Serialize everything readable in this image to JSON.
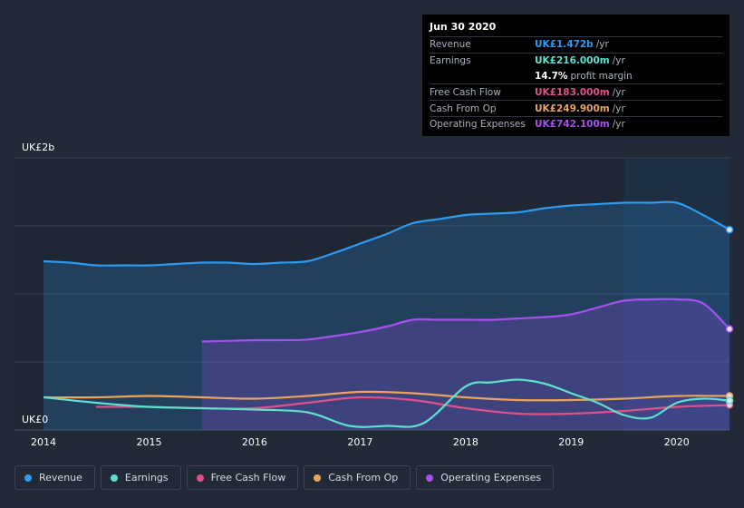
{
  "tooltip": {
    "date": "Jun 30 2020",
    "rows": [
      {
        "label": "Revenue",
        "value": "UK£1.472b",
        "unit": "/yr",
        "color": "#2d9bf0"
      },
      {
        "label": "Earnings",
        "value": "UK£216.000m",
        "unit": "/yr",
        "color": "#5ee0cf"
      },
      {
        "label": "",
        "value": "14.7%",
        "unit": "profit margin",
        "color": "#ffffff"
      },
      {
        "label": "Free Cash Flow",
        "value": "UK£183.000m",
        "unit": "/yr",
        "color": "#e0508a"
      },
      {
        "label": "Cash From Op",
        "value": "UK£249.900m",
        "unit": "/yr",
        "color": "#e9a55c"
      },
      {
        "label": "Operating Expenses",
        "value": "UK£742.100m",
        "unit": "/yr",
        "color": "#a84ff0"
      }
    ]
  },
  "legend": [
    {
      "label": "Revenue",
      "color": "#2d9bf0"
    },
    {
      "label": "Earnings",
      "color": "#5ee0cf"
    },
    {
      "label": "Free Cash Flow",
      "color": "#e0508a"
    },
    {
      "label": "Cash From Op",
      "color": "#e9a55c"
    },
    {
      "label": "Operating Expenses",
      "color": "#a84ff0"
    }
  ],
  "chart_data": {
    "type": "area",
    "ylabel_top": "UK£2b",
    "ylabel_bottom": "UK£0",
    "ylim": [
      0,
      2.0
    ],
    "xlim": [
      2014.0,
      2020.5
    ],
    "highlight_from": 2019.5,
    "x_ticks": [
      "2014",
      "2015",
      "2016",
      "2017",
      "2018",
      "2019",
      "2020"
    ],
    "series": [
      {
        "name": "Revenue",
        "color": "#2d9bf0",
        "fill": true,
        "points": [
          [
            2014.0,
            1.24
          ],
          [
            2014.25,
            1.23
          ],
          [
            2014.5,
            1.21
          ],
          [
            2014.75,
            1.21
          ],
          [
            2015.0,
            1.21
          ],
          [
            2015.25,
            1.22
          ],
          [
            2015.5,
            1.23
          ],
          [
            2015.75,
            1.23
          ],
          [
            2016.0,
            1.22
          ],
          [
            2016.25,
            1.23
          ],
          [
            2016.5,
            1.24
          ],
          [
            2016.75,
            1.3
          ],
          [
            2017.0,
            1.37
          ],
          [
            2017.25,
            1.44
          ],
          [
            2017.5,
            1.52
          ],
          [
            2017.75,
            1.55
          ],
          [
            2018.0,
            1.58
          ],
          [
            2018.25,
            1.59
          ],
          [
            2018.5,
            1.6
          ],
          [
            2018.75,
            1.63
          ],
          [
            2019.0,
            1.65
          ],
          [
            2019.25,
            1.66
          ],
          [
            2019.5,
            1.67
          ],
          [
            2019.75,
            1.67
          ],
          [
            2020.0,
            1.67
          ],
          [
            2020.25,
            1.58
          ],
          [
            2020.5,
            1.472
          ]
        ]
      },
      {
        "name": "Operating Expenses",
        "color": "#a84ff0",
        "fill": true,
        "points": [
          [
            2015.5,
            0.65
          ],
          [
            2015.75,
            0.655
          ],
          [
            2016.0,
            0.66
          ],
          [
            2016.25,
            0.66
          ],
          [
            2016.5,
            0.665
          ],
          [
            2016.75,
            0.69
          ],
          [
            2017.0,
            0.72
          ],
          [
            2017.25,
            0.76
          ],
          [
            2017.5,
            0.81
          ],
          [
            2017.75,
            0.81
          ],
          [
            2018.0,
            0.81
          ],
          [
            2018.25,
            0.81
          ],
          [
            2018.5,
            0.82
          ],
          [
            2018.75,
            0.83
          ],
          [
            2019.0,
            0.85
          ],
          [
            2019.25,
            0.9
          ],
          [
            2019.5,
            0.95
          ],
          [
            2019.75,
            0.96
          ],
          [
            2020.0,
            0.96
          ],
          [
            2020.25,
            0.93
          ],
          [
            2020.5,
            0.7421
          ]
        ]
      },
      {
        "name": "Cash From Op",
        "color": "#e9a55c",
        "fill": false,
        "points": [
          [
            2014.0,
            0.24
          ],
          [
            2014.5,
            0.24
          ],
          [
            2015.0,
            0.25
          ],
          [
            2015.5,
            0.24
          ],
          [
            2016.0,
            0.23
          ],
          [
            2016.5,
            0.25
          ],
          [
            2017.0,
            0.28
          ],
          [
            2017.5,
            0.27
          ],
          [
            2018.0,
            0.24
          ],
          [
            2018.5,
            0.22
          ],
          [
            2019.0,
            0.22
          ],
          [
            2019.5,
            0.23
          ],
          [
            2020.0,
            0.25
          ],
          [
            2020.5,
            0.2499
          ]
        ]
      },
      {
        "name": "Free Cash Flow",
        "color": "#e0508a",
        "fill": false,
        "points": [
          [
            2014.5,
            0.17
          ],
          [
            2015.0,
            0.17
          ],
          [
            2015.5,
            0.16
          ],
          [
            2016.0,
            0.16
          ],
          [
            2016.5,
            0.2
          ],
          [
            2017.0,
            0.24
          ],
          [
            2017.5,
            0.22
          ],
          [
            2018.0,
            0.16
          ],
          [
            2018.5,
            0.12
          ],
          [
            2019.0,
            0.12
          ],
          [
            2019.5,
            0.14
          ],
          [
            2020.0,
            0.17
          ],
          [
            2020.5,
            0.183
          ]
        ]
      },
      {
        "name": "Earnings",
        "color": "#5ee0cf",
        "fill": false,
        "points": [
          [
            2014.0,
            0.24
          ],
          [
            2014.5,
            0.2
          ],
          [
            2015.0,
            0.17
          ],
          [
            2015.5,
            0.16
          ],
          [
            2016.0,
            0.15
          ],
          [
            2016.5,
            0.13
          ],
          [
            2016.9,
            0.03
          ],
          [
            2017.25,
            0.03
          ],
          [
            2017.6,
            0.05
          ],
          [
            2018.0,
            0.32
          ],
          [
            2018.25,
            0.35
          ],
          [
            2018.5,
            0.37
          ],
          [
            2018.75,
            0.34
          ],
          [
            2019.0,
            0.27
          ],
          [
            2019.25,
            0.2
          ],
          [
            2019.5,
            0.11
          ],
          [
            2019.75,
            0.09
          ],
          [
            2020.0,
            0.2
          ],
          [
            2020.25,
            0.23
          ],
          [
            2020.5,
            0.216
          ]
        ]
      }
    ]
  }
}
